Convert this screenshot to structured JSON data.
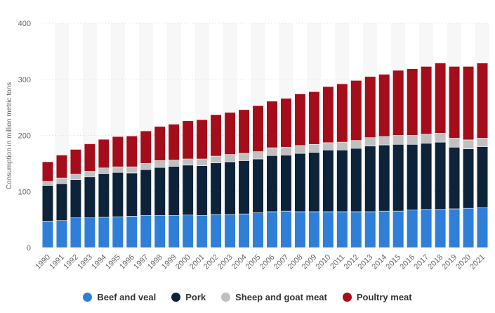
{
  "chart_data": {
    "type": "bar",
    "stacked": true,
    "ylabel": "Consumption in million metric tons",
    "ylim": [
      0,
      400
    ],
    "yticks": [
      0,
      100,
      200,
      300,
      400
    ],
    "categories": [
      "1990",
      "1991",
      "1992",
      "1993",
      "1994",
      "1995",
      "1996",
      "1997",
      "1998",
      "1999",
      "2000",
      "2001",
      "2002",
      "2003",
      "2004",
      "2005",
      "2006",
      "2007",
      "2008",
      "2009",
      "2010",
      "2011",
      "2012",
      "2013",
      "2014",
      "2015",
      "2016",
      "2017",
      "2018",
      "2019",
      "2020",
      "2021"
    ],
    "series": [
      {
        "name": "Beef and veal",
        "color": "#2f7ed8",
        "values": [
          47,
          48,
          53,
          53,
          54,
          55,
          56,
          57,
          57,
          57,
          58,
          57,
          59,
          59,
          60,
          62,
          64,
          65,
          64,
          64,
          64,
          64,
          64,
          64,
          65,
          65,
          67,
          68,
          68,
          69,
          70,
          71
        ]
      },
      {
        "name": "Pork",
        "color": "#0d233a",
        "values": [
          64,
          66,
          68,
          73,
          78,
          79,
          77,
          82,
          86,
          88,
          89,
          89,
          92,
          94,
          95,
          96,
          100,
          100,
          104,
          106,
          110,
          110,
          113,
          117,
          118,
          119,
          117,
          118,
          120,
          110,
          106,
          109
        ]
      },
      {
        "name": "Sheep and goat meat",
        "color": "#c0c0c0",
        "values": [
          7,
          10,
          10,
          10,
          10,
          10,
          11,
          11,
          12,
          11,
          11,
          12,
          12,
          13,
          13,
          13,
          14,
          14,
          14,
          14,
          13,
          14,
          14,
          15,
          15,
          16,
          16,
          16,
          16,
          16,
          16,
          15
        ]
      },
      {
        "name": "Poultry meat",
        "color": "#a60d1a",
        "values": [
          35,
          41,
          44,
          49,
          51,
          54,
          55,
          58,
          61,
          64,
          68,
          70,
          74,
          75,
          78,
          82,
          83,
          87,
          92,
          94,
          100,
          104,
          107,
          109,
          111,
          116,
          119,
          121,
          125,
          128,
          131,
          134
        ]
      }
    ],
    "grid": true,
    "legend_position": "bottom"
  }
}
